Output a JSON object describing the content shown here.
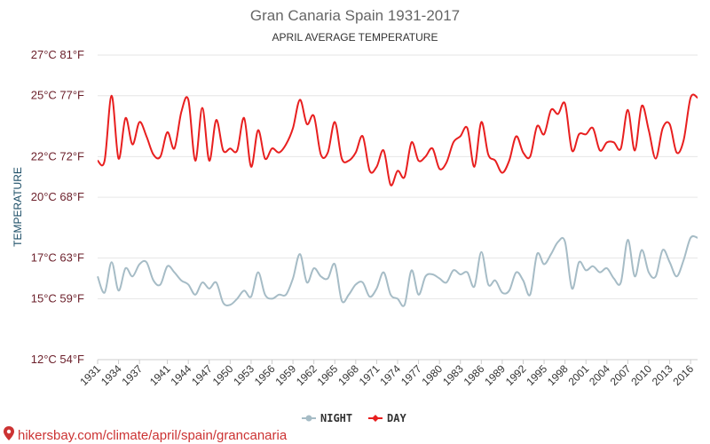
{
  "chart_data": {
    "type": "line",
    "title": "Gran Canaria Spain 1931-2017",
    "subtitle": "APRIL AVERAGE TEMPERATURE",
    "ylabel": "TEMPERATURE",
    "y_ticks": [
      {
        "value": 12,
        "label": "12°C 54°F"
      },
      {
        "value": 15,
        "label": "15°C 59°F"
      },
      {
        "value": 17,
        "label": "17°C 63°F"
      },
      {
        "value": 20,
        "label": "20°C 68°F"
      },
      {
        "value": 22,
        "label": "22°C 72°F"
      },
      {
        "value": 25,
        "label": "25°C 77°F"
      },
      {
        "value": 27,
        "label": "27°C 81°F"
      }
    ],
    "ylim": [
      12,
      27
    ],
    "xlim": [
      1931,
      2017
    ],
    "x_ticks": [
      1931,
      1934,
      1937,
      1941,
      1944,
      1947,
      1950,
      1953,
      1956,
      1959,
      1962,
      1965,
      1968,
      1971,
      1974,
      1977,
      1980,
      1983,
      1986,
      1989,
      1992,
      1995,
      1998,
      2001,
      2004,
      2007,
      2010,
      2013,
      2016
    ],
    "grid": true,
    "legend_position": "bottom-center",
    "x": [
      1931,
      1932,
      1933,
      1934,
      1935,
      1936,
      1937,
      1938,
      1939,
      1940,
      1941,
      1942,
      1943,
      1944,
      1945,
      1946,
      1947,
      1948,
      1949,
      1950,
      1951,
      1952,
      1953,
      1954,
      1955,
      1956,
      1957,
      1958,
      1959,
      1960,
      1961,
      1962,
      1963,
      1964,
      1965,
      1966,
      1967,
      1968,
      1969,
      1970,
      1971,
      1972,
      1973,
      1974,
      1975,
      1976,
      1977,
      1978,
      1979,
      1980,
      1981,
      1982,
      1983,
      1984,
      1985,
      1986,
      1987,
      1988,
      1989,
      1990,
      1991,
      1992,
      1993,
      1994,
      1995,
      1996,
      1997,
      1998,
      1999,
      2000,
      2001,
      2002,
      2003,
      2004,
      2005,
      2006,
      2007,
      2008,
      2009,
      2010,
      2011,
      2012,
      2013,
      2014,
      2015,
      2016,
      2017
    ],
    "series": [
      {
        "name": "NIGHT",
        "color": "#a6bcc6",
        "values": [
          16.1,
          15.3,
          16.8,
          15.4,
          16.5,
          16.1,
          16.7,
          16.8,
          15.9,
          15.7,
          16.6,
          16.3,
          15.9,
          15.7,
          15.2,
          15.8,
          15.5,
          15.8,
          14.8,
          14.7,
          15.0,
          15.4,
          15.1,
          16.3,
          15.2,
          15.0,
          15.2,
          15.2,
          16.0,
          17.2,
          15.8,
          16.5,
          16.1,
          16.0,
          16.7,
          14.9,
          15.2,
          15.7,
          15.8,
          15.1,
          15.5,
          16.3,
          15.2,
          15.0,
          14.7,
          16.4,
          15.2,
          16.1,
          16.2,
          16.0,
          15.8,
          16.4,
          16.2,
          16.3,
          15.6,
          17.3,
          15.7,
          15.9,
          15.3,
          15.4,
          16.3,
          15.9,
          15.2,
          17.2,
          16.7,
          17.2,
          17.8,
          17.8,
          15.5,
          16.8,
          16.4,
          16.6,
          16.3,
          16.5,
          16.0,
          15.8,
          17.9,
          16.1,
          17.4,
          16.3,
          16.1,
          17.4,
          16.8,
          16.1,
          16.9,
          18.0,
          18.0
        ]
      },
      {
        "name": "DAY",
        "color": "#e81f1f",
        "values": [
          21.8,
          21.8,
          25.0,
          21.9,
          23.9,
          22.6,
          23.7,
          23.0,
          22.1,
          22.0,
          23.2,
          22.4,
          24.2,
          24.8,
          21.8,
          24.4,
          21.8,
          23.8,
          22.3,
          22.4,
          22.3,
          23.9,
          21.5,
          23.3,
          21.9,
          22.4,
          22.2,
          22.6,
          23.4,
          24.8,
          23.6,
          24.0,
          22.1,
          22.2,
          23.7,
          21.9,
          21.8,
          22.2,
          23.0,
          21.3,
          21.5,
          22.3,
          20.6,
          21.3,
          21.0,
          22.7,
          21.8,
          22.0,
          22.4,
          21.4,
          21.7,
          22.7,
          23.0,
          23.4,
          21.5,
          23.7,
          22.1,
          21.8,
          21.2,
          21.8,
          23.0,
          22.2,
          22.0,
          23.5,
          23.1,
          24.3,
          24.1,
          24.6,
          22.3,
          23.1,
          23.1,
          23.4,
          22.3,
          22.7,
          22.7,
          22.4,
          24.3,
          22.3,
          24.5,
          23.3,
          21.9,
          23.4,
          23.6,
          22.2,
          22.8,
          24.9,
          24.9
        ]
      }
    ]
  },
  "credit": "hikersbay.com/climate/april/spain/grancanaria"
}
